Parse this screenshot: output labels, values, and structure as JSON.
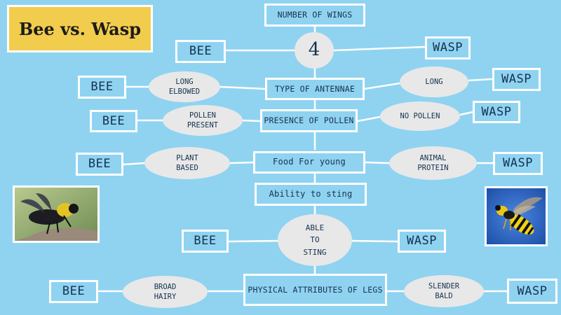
{
  "title": "Bee vs. Wasp",
  "bee_label": "BEE",
  "wasp_label": "WASP",
  "rows": {
    "wings": {
      "category": "NUMBER OF WINGS",
      "shared": "4"
    },
    "antennae": {
      "category": "TYPE OF ANTENNAE",
      "bee": [
        "LONG",
        "ELBOWED"
      ],
      "wasp": [
        "LONG"
      ]
    },
    "pollen": {
      "category": "PRESENCE OF POLLEN",
      "bee": [
        "POLLEN",
        "PRESENT"
      ],
      "wasp": [
        "NO POLLEN"
      ]
    },
    "food": {
      "category": "Food For young",
      "bee": [
        "PLANT",
        "BASED"
      ],
      "wasp": [
        "ANIMAL",
        "PROTEIN"
      ]
    },
    "sting": {
      "category": "Ability to sting",
      "shared": [
        "Able",
        "to",
        "sting"
      ]
    },
    "legs": {
      "category": "PHYSICAL ATTRIBUTES OF LEGS",
      "bee": [
        "BROAD",
        "HAIRY"
      ],
      "wasp": [
        "SLENDER",
        "BALD"
      ]
    }
  },
  "colors": {
    "background": "#8fd3f1",
    "title_fill": "#f2cc4c",
    "border": "#ffffff",
    "oval_fill": "#e8e8e8",
    "text": "#16324f"
  },
  "images": {
    "bee_photo": "bee-photo",
    "wasp_photo": "wasp-photo"
  }
}
